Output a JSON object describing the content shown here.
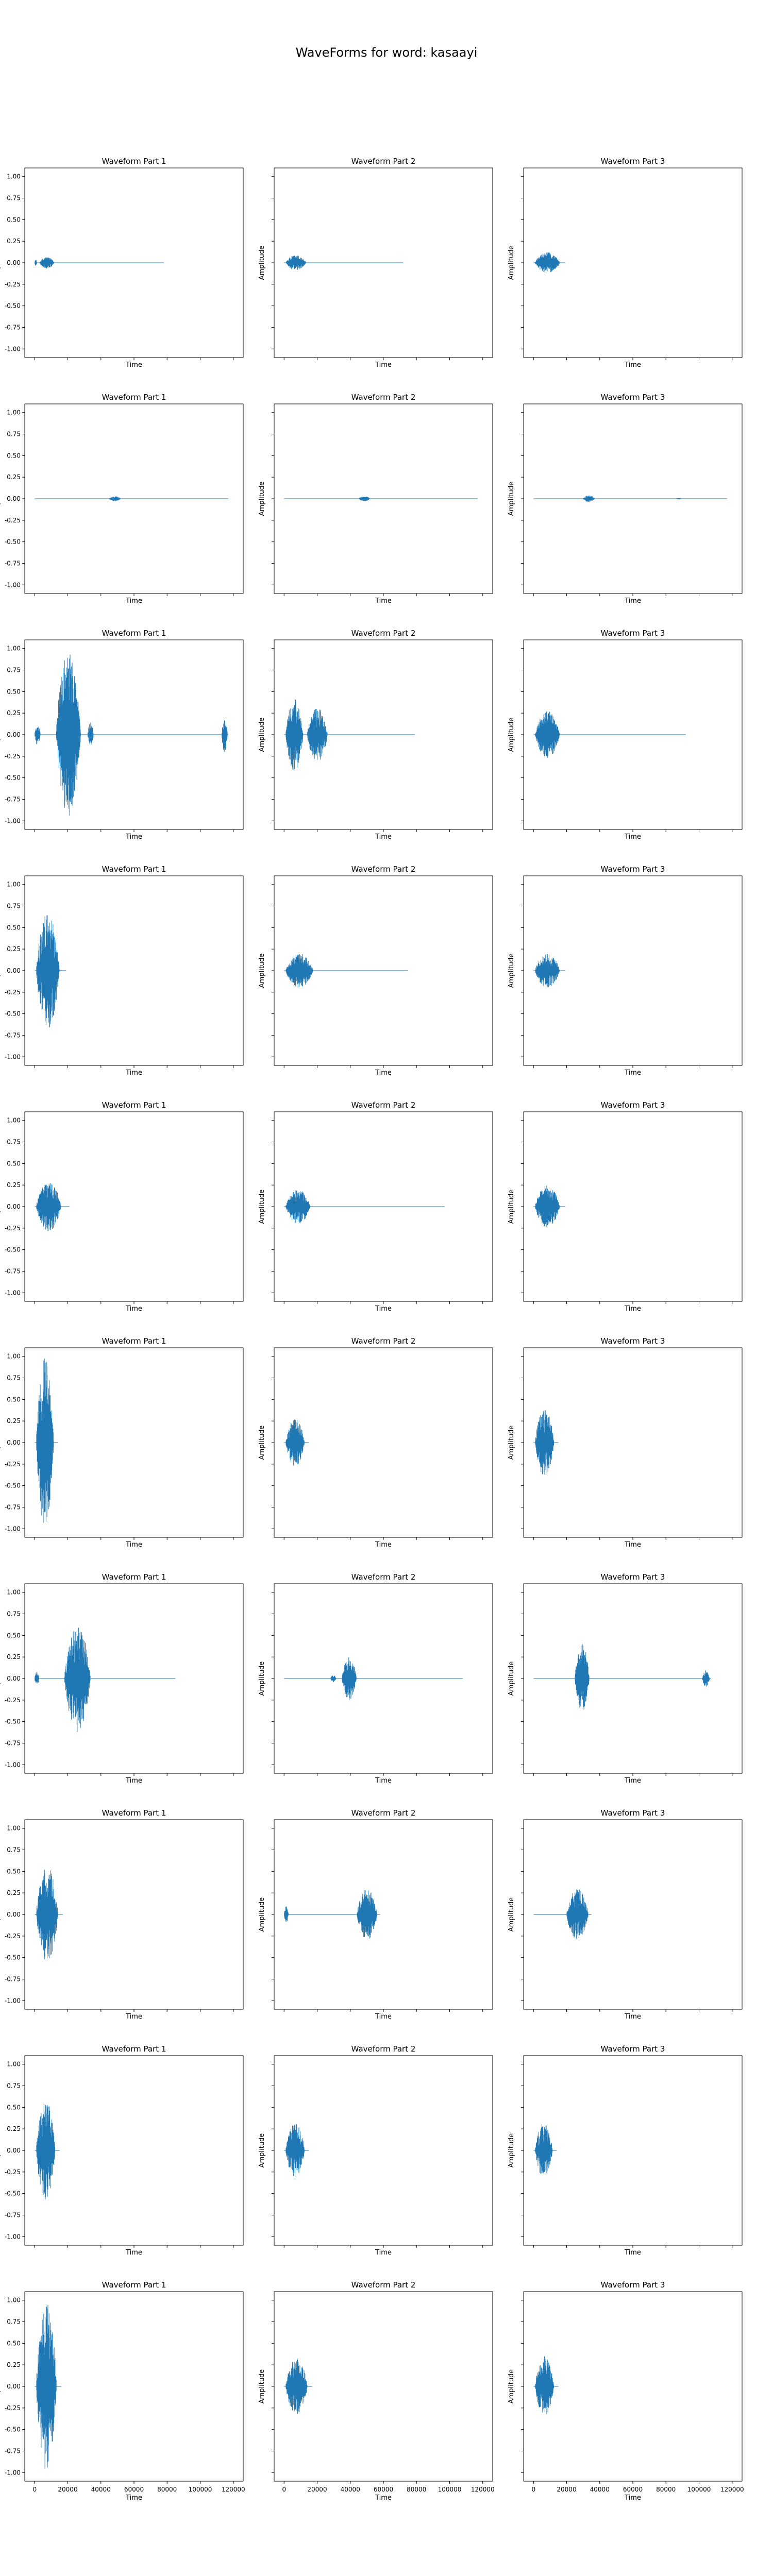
{
  "figure": {
    "title": "WaveForms for word: kasaayi"
  },
  "chart_data": {
    "type": "line",
    "title": "WaveForms for word: kasaayi",
    "color": "#1f77b4",
    "grid": false,
    "shared_x_axis": true,
    "shared_y_axis": true,
    "xlim": [
      -6000,
      126000
    ],
    "ylim": [
      -1.1,
      1.1
    ],
    "x_ticks": [
      0,
      20000,
      40000,
      60000,
      80000,
      100000,
      120000
    ],
    "y_ticks": [
      -1.0,
      -0.75,
      -0.5,
      -0.25,
      0.0,
      0.25,
      0.5,
      0.75,
      1.0
    ],
    "xlabel": "Time",
    "ylabel": "Amplitude",
    "column_titles": [
      "Waveform Part 1",
      "Waveform Part 2",
      "Waveform Part 3"
    ],
    "subplots_note": "approximate envelopes: [start_sample, end_sample, peak_amplitude] segments",
    "rows": [
      [
        {
          "title": "Waveform Part 1",
          "length": 78000,
          "segments": [
            [
              0,
              1500,
              0.04
            ],
            [
              3000,
              13000,
              0.07
            ]
          ]
        },
        {
          "title": "Waveform Part 2",
          "length": 72000,
          "segments": [
            [
              1000,
              15000,
              0.09
            ]
          ]
        },
        {
          "title": "Waveform Part 3",
          "length": 19000,
          "segments": [
            [
              1000,
              18000,
              0.12
            ]
          ]
        }
      ],
      [
        {
          "title": "Waveform Part 1",
          "length": 117000,
          "segments": [
            [
              45000,
              53000,
              0.03
            ]
          ]
        },
        {
          "title": "Waveform Part 2",
          "length": 117000,
          "segments": [
            [
              45000,
              53000,
              0.03
            ]
          ]
        },
        {
          "title": "Waveform Part 3",
          "length": 117000,
          "segments": [
            [
              30000,
              38000,
              0.04
            ],
            [
              86000,
              90000,
              0.01
            ]
          ]
        }
      ],
      [
        {
          "title": "Waveform Part 1",
          "length": 117000,
          "segments": [
            [
              0,
              4000,
              0.12
            ],
            [
              13000,
              30000,
              0.95
            ],
            [
              32000,
              36000,
              0.15
            ],
            [
              113000,
              117000,
              0.2
            ]
          ]
        },
        {
          "title": "Waveform Part 2",
          "length": 79000,
          "segments": [
            [
              1000,
              13000,
              0.42
            ],
            [
              14000,
              28000,
              0.32
            ]
          ]
        },
        {
          "title": "Waveform Part 3",
          "length": 92000,
          "segments": [
            [
              1000,
              18000,
              0.28
            ]
          ]
        }
      ],
      [
        {
          "title": "Waveform Part 1",
          "length": 19000,
          "segments": [
            [
              1000,
              17000,
              0.68
            ]
          ]
        },
        {
          "title": "Waveform Part 2",
          "length": 75000,
          "segments": [
            [
              1000,
              20000,
              0.2
            ]
          ]
        },
        {
          "title": "Waveform Part 3",
          "length": 19000,
          "segments": [
            [
              1000,
              18000,
              0.2
            ]
          ]
        }
      ],
      [
        {
          "title": "Waveform Part 1",
          "length": 21000,
          "segments": [
            [
              1000,
              18000,
              0.3
            ]
          ]
        },
        {
          "title": "Waveform Part 2",
          "length": 97000,
          "segments": [
            [
              1000,
              18000,
              0.2
            ]
          ]
        },
        {
          "title": "Waveform Part 3",
          "length": 19000,
          "segments": [
            [
              1000,
              18000,
              0.25
            ]
          ]
        }
      ],
      [
        {
          "title": "Waveform Part 1",
          "length": 14000,
          "segments": [
            [
              1000,
              13000,
              1.0
            ]
          ]
        },
        {
          "title": "Waveform Part 2",
          "length": 15000,
          "segments": [
            [
              1000,
              14000,
              0.28
            ]
          ]
        },
        {
          "title": "Waveform Part 3",
          "length": 15000,
          "segments": [
            [
              1000,
              14000,
              0.4
            ]
          ]
        }
      ],
      [
        {
          "title": "Waveform Part 1",
          "length": 85000,
          "segments": [
            [
              0,
              3000,
              0.08
            ],
            [
              18000,
              36000,
              0.62
            ]
          ]
        },
        {
          "title": "Waveform Part 2",
          "length": 108000,
          "segments": [
            [
              28000,
              32000,
              0.04
            ],
            [
              35000,
              45000,
              0.25
            ]
          ]
        },
        {
          "title": "Waveform Part 3",
          "length": 107000,
          "segments": [
            [
              25000,
              35000,
              0.4
            ],
            [
              102000,
              107000,
              0.1
            ]
          ]
        }
      ],
      [
        {
          "title": "Waveform Part 1",
          "length": 17000,
          "segments": [
            [
              1000,
              16000,
              0.55
            ]
          ]
        },
        {
          "title": "Waveform Part 2",
          "length": 58000,
          "segments": [
            [
              0,
              3000,
              0.1
            ],
            [
              44000,
              58000,
              0.3
            ]
          ]
        },
        {
          "title": "Waveform Part 3",
          "length": 35000,
          "segments": [
            [
              20000,
              35000,
              0.3
            ]
          ]
        }
      ],
      [
        {
          "title": "Waveform Part 1",
          "length": 15000,
          "segments": [
            [
              1000,
              14000,
              0.6
            ]
          ]
        },
        {
          "title": "Waveform Part 2",
          "length": 15000,
          "segments": [
            [
              1000,
              14000,
              0.32
            ]
          ]
        },
        {
          "title": "Waveform Part 3",
          "length": 14000,
          "segments": [
            [
              1000,
              13000,
              0.32
            ]
          ]
        }
      ],
      [
        {
          "title": "Waveform Part 1",
          "length": 16000,
          "segments": [
            [
              1000,
              15000,
              0.98
            ]
          ]
        },
        {
          "title": "Waveform Part 2",
          "length": 17000,
          "segments": [
            [
              1000,
              16000,
              0.33
            ]
          ]
        },
        {
          "title": "Waveform Part 3",
          "length": 15000,
          "segments": [
            [
              1000,
              14000,
              0.35
            ]
          ]
        }
      ]
    ]
  }
}
